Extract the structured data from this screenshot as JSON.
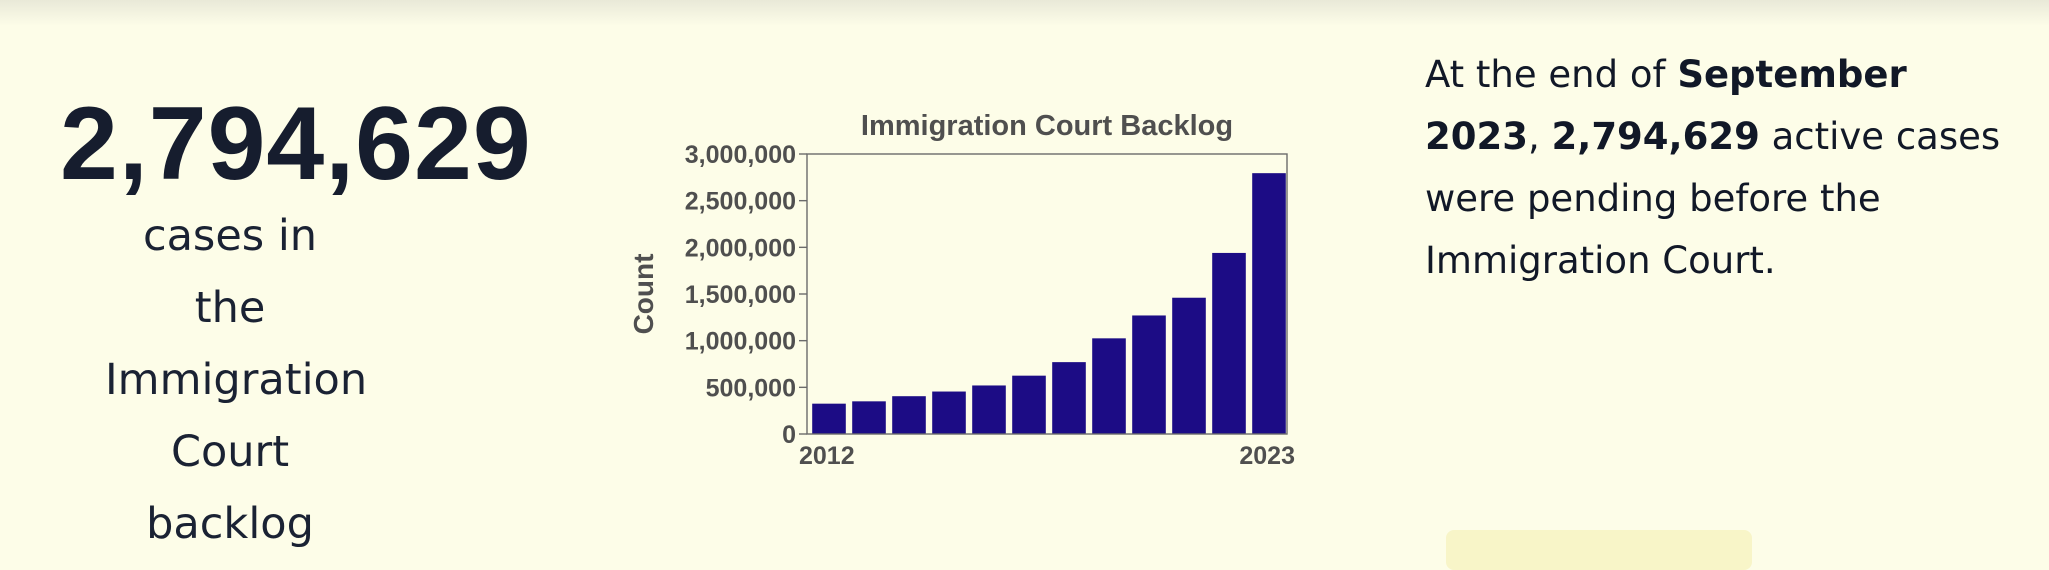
{
  "stat": {
    "number": "2,794,629",
    "caption_lines": [
      "cases in the",
      "Immigration",
      "Court",
      "backlog"
    ]
  },
  "summary": {
    "prefix": "At the end of ",
    "date": "September 2023",
    "sep": ", ",
    "count": "2,794,629",
    "suffix": " active cases were pending before the Immigration Court."
  },
  "chart_data": {
    "type": "bar",
    "title": "Immigration Court Backlog",
    "xlabel": "",
    "ylabel": "Count",
    "categories": [
      "2012",
      "2013",
      "2014",
      "2015",
      "2016",
      "2017",
      "2018",
      "2019",
      "2020",
      "2021",
      "2022",
      "2023"
    ],
    "x_tick_labels": [
      "2012",
      "2023"
    ],
    "values": [
      325000,
      350000,
      405000,
      455000,
      520000,
      625000,
      770000,
      1025000,
      1270000,
      1460000,
      1940000,
      2794629
    ],
    "ylim": [
      0,
      3000000
    ],
    "y_ticks": [
      0,
      500000,
      1000000,
      1500000,
      2000000,
      2500000,
      3000000
    ],
    "y_tick_labels": [
      "0",
      "500,000",
      "1,000,000",
      "1,500,000",
      "2,000,000",
      "2,500,000",
      "3,000,000"
    ],
    "grid": false,
    "bar_color": "#1c0c85"
  },
  "colors": {
    "background": "#fdfde8",
    "text": "#1a2233",
    "chart_text": "#4f4f4f"
  }
}
